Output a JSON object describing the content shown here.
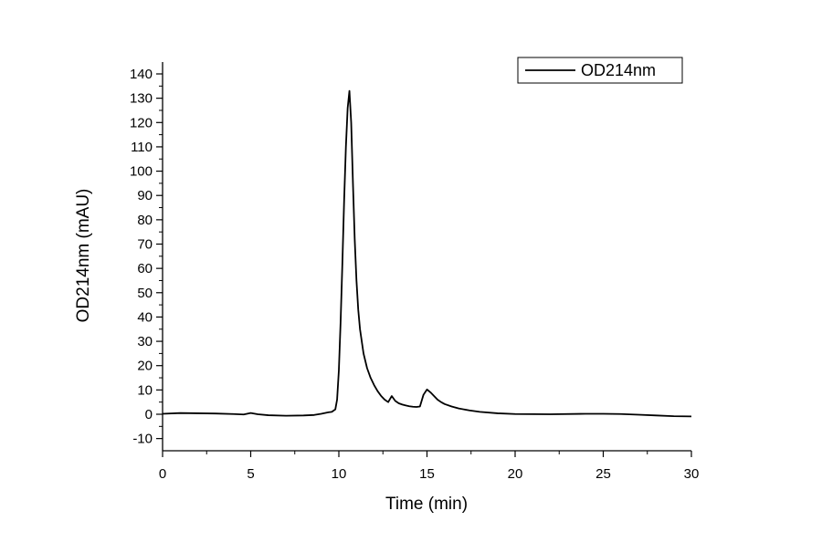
{
  "chart_data": {
    "type": "line",
    "xlabel": "Time (min)",
    "ylabel": "OD214nm (mAU)",
    "xlim": [
      0,
      30
    ],
    "ylim": [
      -15,
      142
    ],
    "xticks": [
      0,
      5,
      10,
      15,
      20,
      25,
      30
    ],
    "yticks": [
      -10,
      0,
      10,
      20,
      30,
      40,
      50,
      60,
      70,
      80,
      90,
      100,
      110,
      120,
      130,
      140
    ],
    "grid": false,
    "legend_position": "top-right",
    "colors": {
      "line": "#000000"
    },
    "series": [
      {
        "name": "OD214nm",
        "x": [
          0,
          1,
          2,
          3,
          4,
          4.6,
          5.0,
          5.4,
          6,
          7,
          8,
          8.6,
          9.0,
          9.4,
          9.6,
          9.8,
          9.9,
          10.0,
          10.1,
          10.2,
          10.3,
          10.4,
          10.5,
          10.6,
          10.7,
          10.8,
          10.9,
          11.0,
          11.1,
          11.2,
          11.4,
          11.6,
          11.8,
          12.0,
          12.2,
          12.4,
          12.6,
          12.8,
          13.0,
          13.2,
          13.4,
          13.6,
          13.8,
          14.0,
          14.2,
          14.4,
          14.6,
          14.8,
          15.0,
          15.2,
          15.4,
          15.6,
          15.8,
          16.0,
          16.4,
          16.8,
          17.4,
          18.0,
          19.0,
          20.0,
          22.0,
          24.0,
          25.0,
          26.0,
          27.0,
          28.0,
          29.0,
          30.0
        ],
        "y": [
          0.2,
          0.5,
          0.4,
          0.3,
          0.1,
          -0.1,
          0.5,
          0.0,
          -0.4,
          -0.6,
          -0.5,
          -0.3,
          0.2,
          0.8,
          1.0,
          2.0,
          6.0,
          18.0,
          38.0,
          62.0,
          88.0,
          110.0,
          126.0,
          133.0,
          120.0,
          95.0,
          72.0,
          55.0,
          43.0,
          35.0,
          25.0,
          19.0,
          15.0,
          12.0,
          9.5,
          7.5,
          6.0,
          5.0,
          7.5,
          5.5,
          4.5,
          4.0,
          3.6,
          3.3,
          3.1,
          3.0,
          3.2,
          8.0,
          10.2,
          9.0,
          7.5,
          6.0,
          5.0,
          4.2,
          3.2,
          2.4,
          1.6,
          1.0,
          0.4,
          0.1,
          0.0,
          0.2,
          0.2,
          0.1,
          -0.2,
          -0.5,
          -0.8,
          -0.9
        ]
      }
    ]
  }
}
